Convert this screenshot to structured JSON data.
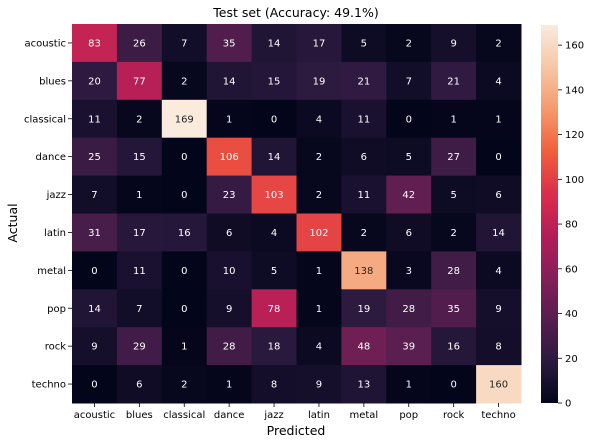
{
  "chart_data": {
    "type": "heatmap",
    "title": "Test set (Accuracy: 49.1%)",
    "xlabel": "Predicted",
    "ylabel": "Actual",
    "x_categories": [
      "acoustic",
      "blues",
      "classical",
      "dance",
      "jazz",
      "latin",
      "metal",
      "pop",
      "rock",
      "techno"
    ],
    "y_categories": [
      "acoustic",
      "blues",
      "classical",
      "dance",
      "jazz",
      "latin",
      "metal",
      "pop",
      "rock",
      "techno"
    ],
    "values": [
      [
        83,
        26,
        7,
        35,
        14,
        17,
        5,
        2,
        9,
        2
      ],
      [
        20,
        77,
        2,
        14,
        15,
        19,
        21,
        7,
        21,
        4
      ],
      [
        11,
        2,
        169,
        1,
        0,
        4,
        11,
        0,
        1,
        1
      ],
      [
        25,
        15,
        0,
        106,
        14,
        2,
        6,
        5,
        27,
        0
      ],
      [
        7,
        1,
        0,
        23,
        103,
        2,
        11,
        42,
        5,
        6
      ],
      [
        31,
        17,
        16,
        6,
        4,
        102,
        2,
        6,
        2,
        14
      ],
      [
        0,
        11,
        0,
        10,
        5,
        1,
        138,
        3,
        28,
        4
      ],
      [
        14,
        7,
        0,
        9,
        78,
        1,
        19,
        28,
        35,
        9
      ],
      [
        9,
        29,
        1,
        28,
        18,
        4,
        48,
        39,
        16,
        8
      ],
      [
        0,
        6,
        2,
        1,
        8,
        9,
        13,
        1,
        0,
        160
      ]
    ],
    "colorbar": {
      "min": 0,
      "max": 169,
      "ticks": [
        0,
        20,
        40,
        60,
        80,
        100,
        120,
        140,
        160
      ],
      "colormap": "rocket",
      "colors": [
        "#03051a",
        "#2b1a3f",
        "#561e4f",
        "#851f58",
        "#b31d58",
        "#dc2e4b",
        "#f0603c",
        "#f59a6d",
        "#f6c7a5",
        "#faebdd"
      ]
    }
  }
}
